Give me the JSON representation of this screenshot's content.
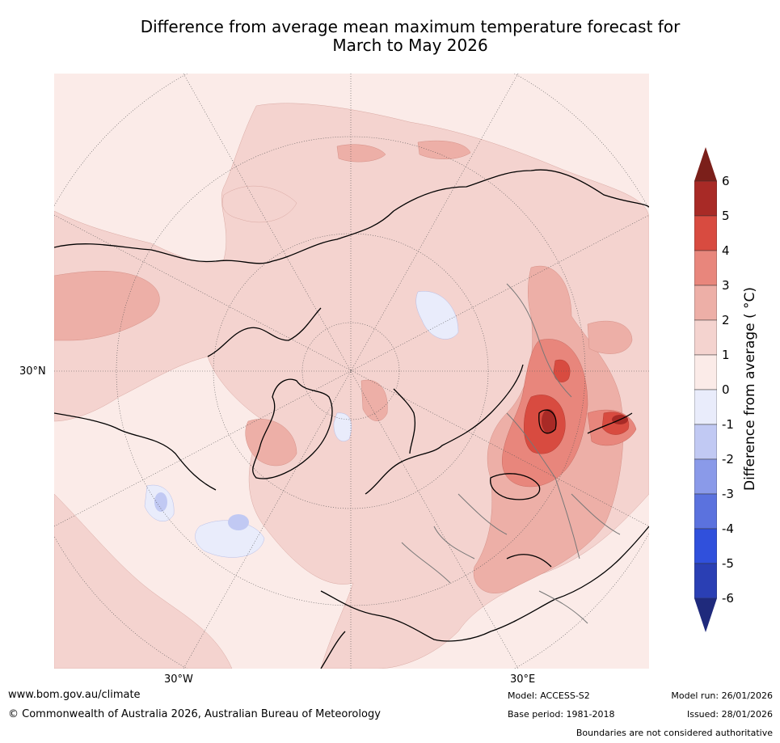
{
  "title": {
    "line1": "Difference from average mean maximum temperature forecast for",
    "line2": "March to May 2026"
  },
  "map": {
    "projection": "north-polar-stereographic",
    "lat_label": "30°N",
    "lon_labels": [
      "30°W",
      "30°E"
    ]
  },
  "colorbar": {
    "label": "Difference from average ( °C)",
    "ticks": [
      "6",
      "5",
      "4",
      "3",
      "2",
      "1",
      "0",
      "-1",
      "-2",
      "-3",
      "-4",
      "-5",
      "-6"
    ],
    "colors": {
      "extend_high": "#7b1f1a",
      "5_6": "#a82a26",
      "4_5": "#d84b40",
      "3_4": "#e8867c",
      "2_3": "#edafa7",
      "1_2": "#f4d3cf",
      "0_1": "#fbebe8",
      "m1_0": "#e9ecfb",
      "m2_m1": "#c1c9f3",
      "m3_m2": "#8a9ae9",
      "m4_m3": "#5b72de",
      "m5_m4": "#3050dc",
      "m6_m5": "#2a3fb4",
      "extend_low": "#1f2a7c"
    }
  },
  "footer": {
    "url": "www.bom.gov.au/climate",
    "copyright": "© Commonwealth of Australia 2026, Australian Bureau of Meteorology",
    "model": "Model: ACCESS-S2",
    "base_period": "Base period: 1981-2018",
    "model_run": "Model run: 26/01/2026",
    "issued": "Issued: 28/01/2026",
    "disclaimer": "Boundaries are not considered authoritative"
  }
}
